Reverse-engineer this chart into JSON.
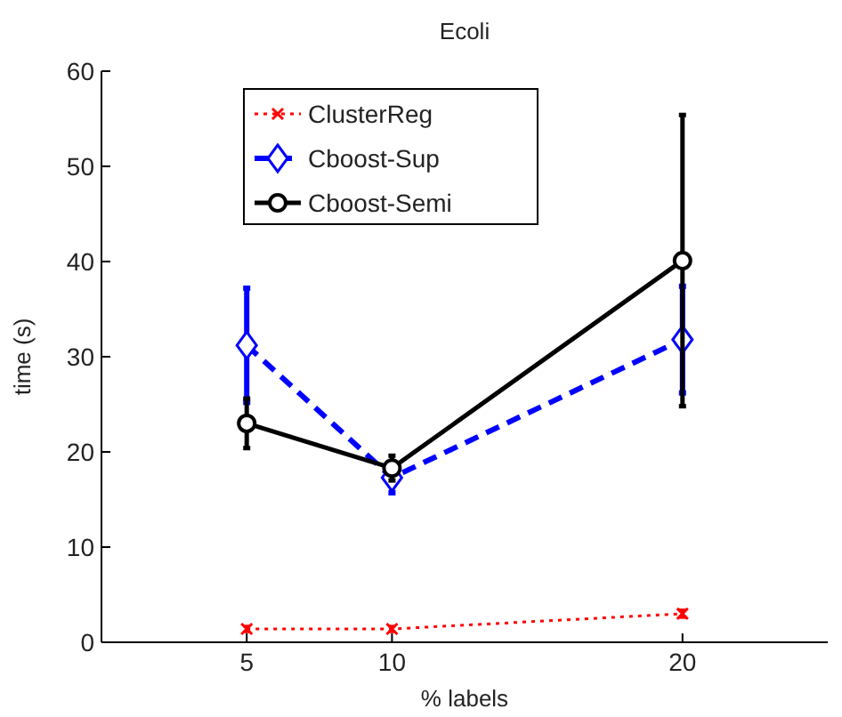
{
  "chart_data": {
    "type": "line",
    "title": "Ecoli",
    "xlabel": "% labels",
    "ylabel": "time (s)",
    "x": [
      5,
      10,
      20
    ],
    "xlim": [
      0,
      25
    ],
    "xticks": [
      5,
      10,
      20
    ],
    "ylim": [
      0,
      60
    ],
    "yticks": [
      0,
      10,
      20,
      30,
      40,
      50,
      60
    ],
    "grid": false,
    "legend": "top",
    "series": [
      {
        "name": "ClusterReg",
        "color": "#ff0000",
        "values": [
          1.4,
          1.4,
          3.0
        ],
        "errors": [
          0.3,
          0.3,
          0.4
        ],
        "marker": "cross",
        "line_style": "dotted"
      },
      {
        "name": "Cboost-Sup",
        "color": "#0000ff",
        "values": [
          31.2,
          17.3,
          31.8
        ],
        "errors": [
          6,
          1.6,
          5.6
        ],
        "marker": "diamond",
        "line_style": "dashed"
      },
      {
        "name": "Cboost-Semi",
        "color": "#000000",
        "values": [
          23.0,
          18.3,
          40.1
        ],
        "errors": [
          2.6,
          1.3,
          15.3
        ],
        "marker": "circle",
        "line_style": "solid"
      }
    ]
  }
}
